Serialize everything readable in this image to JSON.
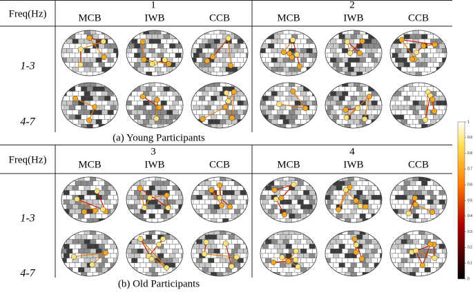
{
  "panels": [
    {
      "freq_header": "Freq(Hz)",
      "groups": [
        {
          "label": "1",
          "columns": [
            "MCB",
            "IWB",
            "CCB"
          ]
        },
        {
          "label": "2",
          "columns": [
            "MCB",
            "IWB",
            "CCB"
          ]
        }
      ],
      "rows": [
        "1-3",
        "4-7"
      ],
      "caption": "(a) Young Participants"
    },
    {
      "freq_header": "Freq(Hz)",
      "groups": [
        {
          "label": "3",
          "columns": [
            "MCB",
            "IWB",
            "CCB"
          ]
        },
        {
          "label": "4",
          "columns": [
            "MCB",
            "IWB",
            "CCB"
          ]
        }
      ],
      "rows": [
        "1-3",
        "4-7"
      ],
      "caption": "(b) Old Participants"
    }
  ],
  "colorbar": {
    "lim": [
      0,
      1
    ],
    "ticks": [
      0,
      0.1,
      0.2,
      0.3,
      0.4,
      0.5,
      0.6,
      0.7,
      0.8,
      0.9,
      1
    ]
  }
}
